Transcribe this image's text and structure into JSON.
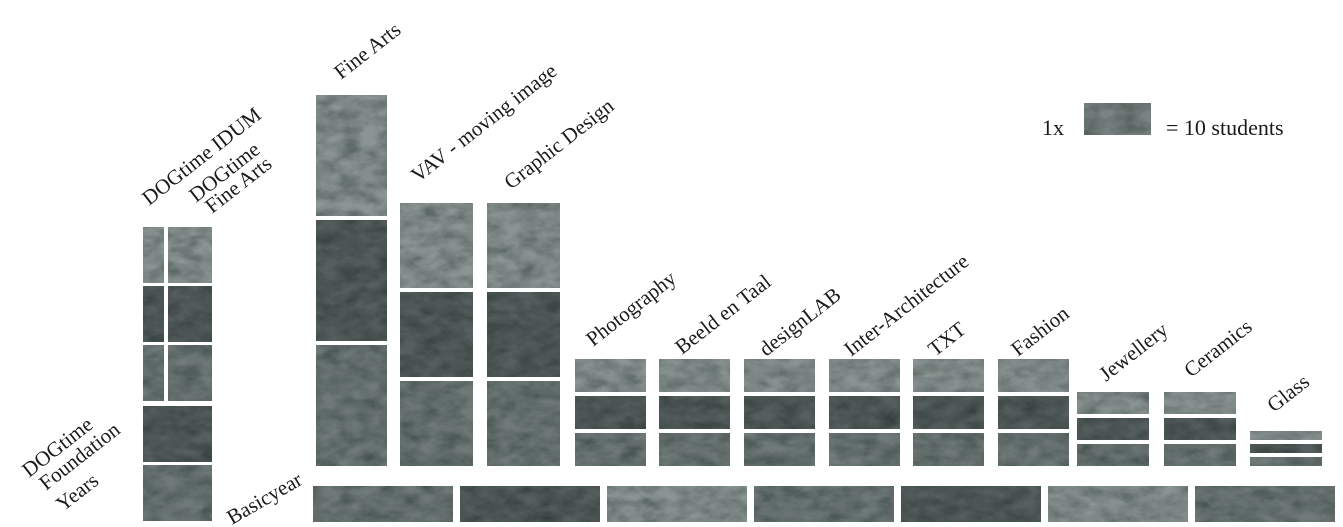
{
  "legend": {
    "multiplier": "1x",
    "equals_text": "= 10 students",
    "block_value": 10
  },
  "colors": {
    "block": "#6f7a78",
    "block_dark": "#555f5e",
    "block_light": "#8b9593",
    "gap": "#ffffff"
  },
  "chart_data": {
    "type": "bar",
    "unit": "students",
    "block_value": 10,
    "title": "",
    "xlabel": "",
    "ylabel": "",
    "series": [
      {
        "name": "DOGtime IDUM",
        "value": 30,
        "stack_group": "DOGtime Foundation Years"
      },
      {
        "name": "DOGtime Fine Arts",
        "value": 30,
        "stack_group": "DOGtime Foundation Years"
      },
      {
        "name": "DOGtime Foundation Years",
        "value": 20,
        "stack_group": "DOGtime Foundation Years"
      },
      {
        "name": "Fine Arts",
        "value": 30
      },
      {
        "name": "VAV - moving image",
        "value": 30
      },
      {
        "name": "Graphic Design",
        "value": 30
      },
      {
        "name": "Photography",
        "value": 30
      },
      {
        "name": "Beeld en Taal",
        "value": 30
      },
      {
        "name": "designLAB",
        "value": 30
      },
      {
        "name": "Inter-Architecture",
        "value": 30
      },
      {
        "name": "TXT",
        "value": 30
      },
      {
        "name": "Fashion",
        "value": 30
      },
      {
        "name": "Jewellery",
        "value": 30
      },
      {
        "name": "Ceramics",
        "value": 30
      },
      {
        "name": "Glass",
        "value": 30
      },
      {
        "name": "Basicyear",
        "value": 70
      }
    ],
    "labels": {
      "dog_idum": "DOGtime IDUM",
      "dog_fa_1": "DOGtime",
      "dog_fa_2": "Fine Arts",
      "dog_fy_1": "DOGtime",
      "dog_fy_2": "Foundation",
      "dog_fy_3": "Years",
      "fine_arts": "Fine Arts",
      "vav": "VAV - moving image",
      "graphic": "Graphic Design",
      "photo": "Photography",
      "beeld": "Beeld en Taal",
      "designlab": "designLAB",
      "interarch": "Inter-Architecture",
      "txt": "TXT",
      "fashion": "Fashion",
      "jewellery": "Jewellery",
      "ceramics": "Ceramics",
      "glass": "Glass",
      "basicyear": "Basicyear"
    }
  }
}
